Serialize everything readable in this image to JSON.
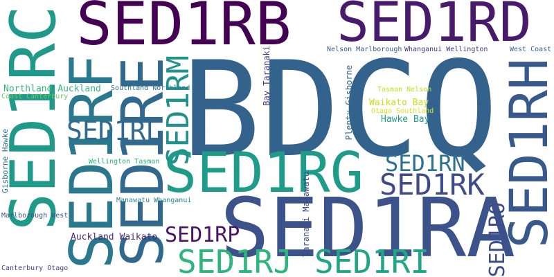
{
  "words": [
    {
      "text": "BDCQ",
      "color": "#33638d"
    },
    {
      "text": "SED1RA",
      "color": "#3b528b"
    },
    {
      "text": "SED1RB",
      "color": "#440154"
    },
    {
      "text": "SED1RD",
      "color": "#481a6c"
    },
    {
      "text": "SED1RC",
      "color": "#1f9a8a"
    },
    {
      "text": "SED1RE",
      "color": "#31688e"
    },
    {
      "text": "SED1RF",
      "color": "#2a788e"
    },
    {
      "text": "SED1RG",
      "color": "#1e9c89"
    },
    {
      "text": "SED1RH",
      "color": "#38598c"
    },
    {
      "text": "SED1RI",
      "color": "#21a685"
    },
    {
      "text": "SED1RJ",
      "color": "#2fb47c"
    },
    {
      "text": "SED1RK",
      "color": "#3e4a89"
    },
    {
      "text": "SED1RL",
      "color": "#31688e"
    },
    {
      "text": "SED1RM",
      "color": "#20928c"
    },
    {
      "text": "SED1RN",
      "color": "#2c728e"
    },
    {
      "text": "SED1RO",
      "color": "#3d4d8a"
    },
    {
      "text": "SED1RP",
      "color": "#481467"
    },
    {
      "text": "Northland Auckland",
      "color": "#35b779"
    },
    {
      "text": "Southland Northland",
      "color": "#2a788e"
    },
    {
      "text": "Coast Canterbury",
      "color": "#6ece58"
    },
    {
      "text": "Gisborne Hawke",
      "color": "#2c728e"
    },
    {
      "text": "Wellington Tasman",
      "color": "#2ab07f"
    },
    {
      "text": "Manawatu Whanganui",
      "color": "#25858e"
    },
    {
      "text": "Marlborough West",
      "color": "#3b528b"
    },
    {
      "text": "Auckland Waikato",
      "color": "#482878"
    },
    {
      "text": "Canterbury Otago",
      "color": "#414487"
    },
    {
      "text": "Bay Taranaki",
      "color": "#443983"
    },
    {
      "text": "Plenty Gisborne",
      "color": "#31688e"
    },
    {
      "text": "Taranaki Manawatu",
      "color": "#3e4a89"
    },
    {
      "text": "Nelson Marlborough",
      "color": "#39568c"
    },
    {
      "text": "Whanganui Wellington",
      "color": "#46337f"
    },
    {
      "text": "West Coast",
      "color": "#33638d"
    },
    {
      "text": "Tasman Nelson",
      "color": "#bddf26"
    },
    {
      "text": "Waikato Bay",
      "color": "#c8e020"
    },
    {
      "text": "Otago Southland",
      "color": "#dde318"
    },
    {
      "text": "Hawke Bay",
      "color": "#1f9e89"
    }
  ]
}
